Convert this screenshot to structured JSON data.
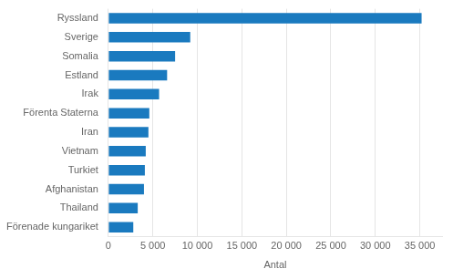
{
  "chart_data": {
    "type": "bar",
    "orientation": "horizontal",
    "categories": [
      "Förenade kungariket",
      "Thailand",
      "Afghanistan",
      "Turkiet",
      "Vietnam",
      "Iran",
      "Förenta Staterna",
      "Irak",
      "Estland",
      "Somalia",
      "Sverige",
      "Ryssland"
    ],
    "values": [
      2800,
      3300,
      4000,
      4100,
      4200,
      4500,
      4600,
      5700,
      6600,
      7500,
      9200,
      35200
    ],
    "color": "#1a7abf",
    "xlabel": "Antal",
    "xlim": [
      0,
      37500
    ],
    "xticks": [
      0,
      {
        "value": 5000,
        "label": "5 000"
      },
      {
        "value": 10000,
        "label": "10 000"
      },
      {
        "value": 15000,
        "label": "15 000"
      },
      {
        "value": 20000,
        "label": "20 000"
      },
      {
        "value": 25000,
        "label": "25 000"
      },
      {
        "value": 30000,
        "label": "30 000"
      },
      {
        "value": 35000,
        "label": "35 000"
      }
    ],
    "grid": true
  }
}
